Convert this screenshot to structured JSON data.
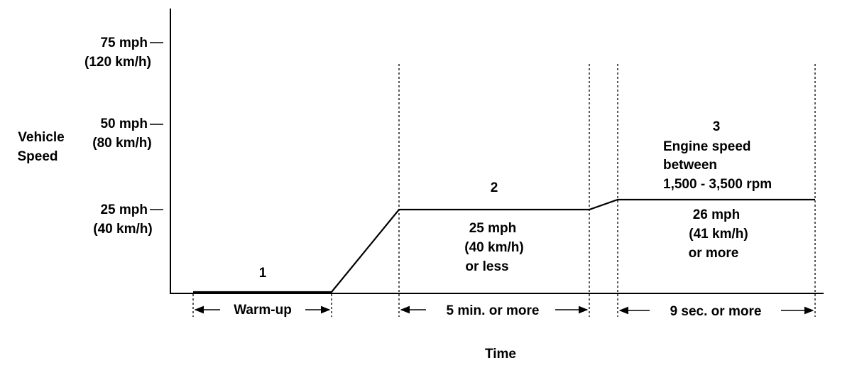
{
  "axes": {
    "y_label_lines": [
      "Vehicle",
      "Speed"
    ],
    "x_label": "Time"
  },
  "y_ticks": [
    {
      "mph": "75 mph",
      "kmh": "(120 km/h)"
    },
    {
      "mph": "50 mph",
      "kmh": "(80 km/h)"
    },
    {
      "mph": "25 mph",
      "kmh": "(40 km/h)"
    }
  ],
  "phases": [
    {
      "number": "1",
      "duration": "Warm-up",
      "notes": []
    },
    {
      "number": "2",
      "duration": "5 min. or more",
      "notes": [
        "25 mph",
        "(40 km/h)",
        "or less"
      ]
    },
    {
      "number": "3",
      "duration": "9 sec. or more",
      "condition": [
        "Engine speed",
        "between",
        "1,500 - 3,500 rpm"
      ],
      "notes": [
        "26 mph",
        "(41 km/h)",
        "or more"
      ]
    }
  ],
  "profile_mph": {
    "phase_1": 0,
    "phase_2": 25,
    "phase_3": 26
  },
  "colors": {
    "line": "#000000",
    "background": "#ffffff"
  }
}
